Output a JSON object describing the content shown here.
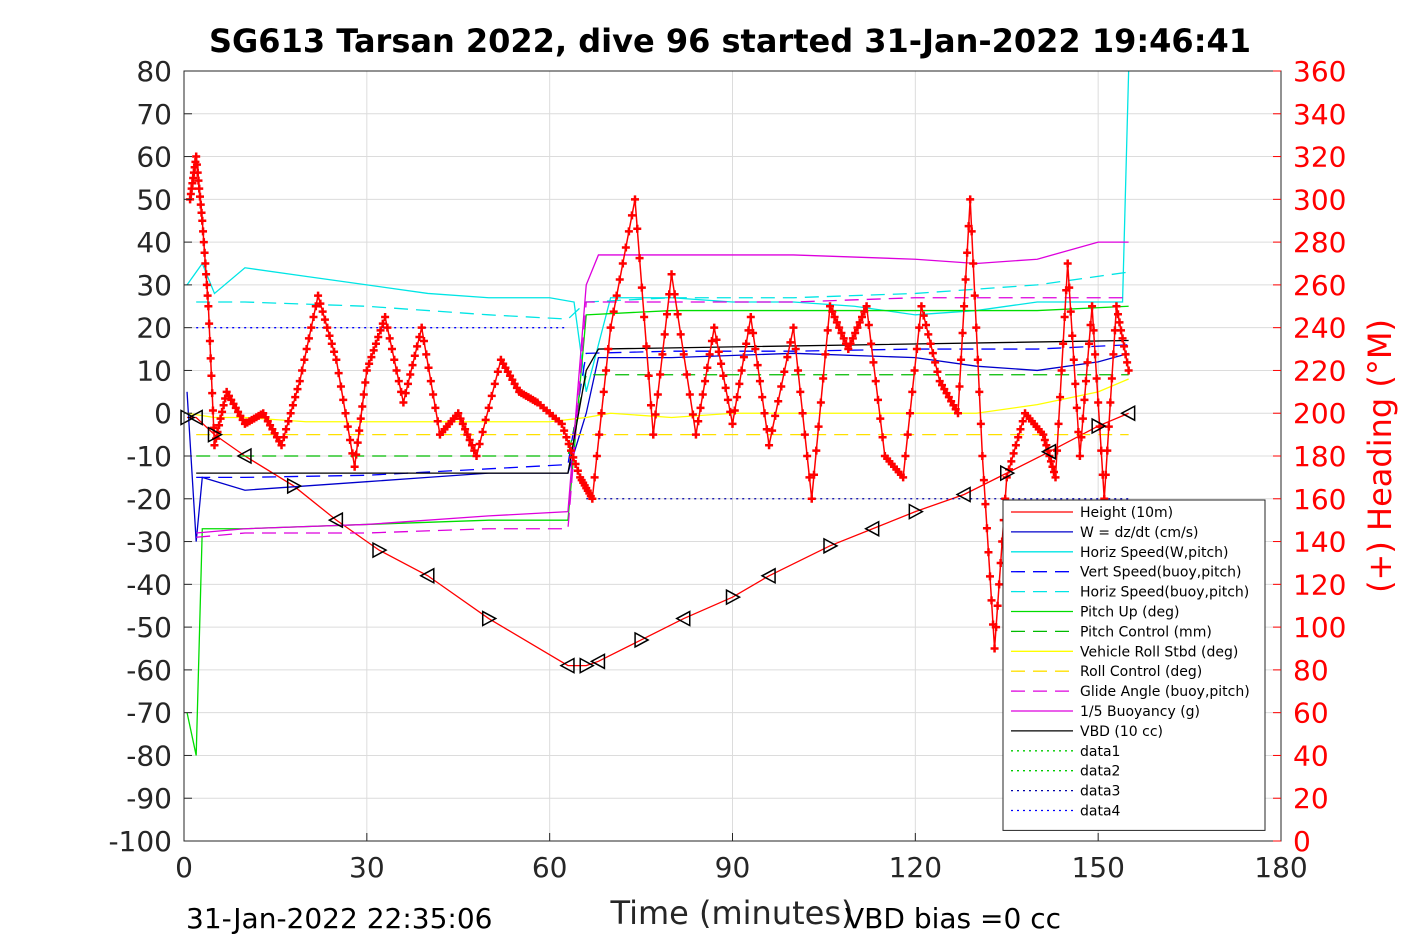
{
  "chart_data": {
    "type": "line",
    "title": "SG613 Tarsan 2022, dive 96 started 31-Jan-2022 19:46:41",
    "xlabel": "Time (minutes)",
    "ylabel_left": "",
    "ylabel_right": "(+) Heading (°M)",
    "xlim": [
      0,
      180
    ],
    "ylim_left": [
      -100,
      80
    ],
    "ylim_right": [
      0,
      360
    ],
    "x_ticks": [
      "0",
      "30",
      "60",
      "90",
      "120",
      "150",
      "180"
    ],
    "y_ticks_left": [
      "80",
      "70",
      "60",
      "50",
      "40",
      "30",
      "20",
      "10",
      "0",
      "-10",
      "-20",
      "-30",
      "-40",
      "-50",
      "-60",
      "-70",
      "-80",
      "-90",
      "-100"
    ],
    "y_ticks_right": [
      "360",
      "340",
      "320",
      "300",
      "280",
      "260",
      "240",
      "220",
      "200",
      "180",
      "160",
      "140",
      "120",
      "100",
      "80",
      "60",
      "40",
      "20",
      "0"
    ],
    "grid": true,
    "legend_position": "bottom-right",
    "footer_left": "31-Jan-2022 22:35:06",
    "footer_right": "VBD bias =0 cc",
    "legend": [
      {
        "name": "Height (10m)",
        "color": "#ff0000",
        "style": "solid"
      },
      {
        "name": "W = dz/dt (cm/s)",
        "color": "#0000cc",
        "style": "solid"
      },
      {
        "name": "Horiz Speed(W,pitch)",
        "color": "#00e5e5",
        "style": "solid"
      },
      {
        "name": "Vert Speed(buoy,pitch)",
        "color": "#0000ff",
        "style": "dashed"
      },
      {
        "name": "Horiz Speed(buoy,pitch)",
        "color": "#00e5e5",
        "style": "dashed"
      },
      {
        "name": "Pitch Up (deg)",
        "color": "#00dd00",
        "style": "solid"
      },
      {
        "name": "Pitch Control (mm)",
        "color": "#00bb00",
        "style": "dashed"
      },
      {
        "name": "Vehicle Roll Stbd (deg)",
        "color": "#ffff00",
        "style": "solid"
      },
      {
        "name": "Roll Control (deg)",
        "color": "#ffe000",
        "style": "dashed"
      },
      {
        "name": "Glide Angle (buoy,pitch)",
        "color": "#dd00dd",
        "style": "dashed"
      },
      {
        "name": "1/5 Buoyancy (g)",
        "color": "#dd00dd",
        "style": "solid"
      },
      {
        "name": "VBD (10 cc)",
        "color": "#000000",
        "style": "solid"
      },
      {
        "name": "data1",
        "color": "#00cc00",
        "style": "dotted"
      },
      {
        "name": "data2",
        "color": "#00cc00",
        "style": "dotted"
      },
      {
        "name": "data3",
        "color": "#0000aa",
        "style": "dotted"
      },
      {
        "name": "data4",
        "color": "#0000ff",
        "style": "dotted"
      }
    ],
    "series": [
      {
        "name": "Height (10m)",
        "axis": "left",
        "x": [
          0.5,
          2,
          5,
          10,
          18,
          25,
          32,
          40,
          50,
          63,
          66,
          68,
          75,
          82,
          90,
          96,
          106,
          113,
          120,
          128,
          135,
          142,
          150,
          155
        ],
        "y": [
          -1,
          -1,
          -5,
          -10,
          -17,
          -25,
          -32,
          -38,
          -48,
          -59,
          -59,
          -58,
          -53,
          -48,
          -43,
          -38,
          -31,
          -27,
          -23,
          -19,
          -14,
          -9,
          -3,
          0
        ]
      },
      {
        "name": "W = dz/dt (cm/s)",
        "axis": "left",
        "x": [
          0.5,
          2,
          3,
          10,
          20,
          30,
          40,
          50,
          63,
          66,
          68,
          80,
          100,
          120,
          130,
          140,
          150,
          155
        ],
        "y": [
          5,
          -30,
          -15,
          -18,
          -17,
          -16,
          -15,
          -14,
          -14,
          0,
          13,
          13,
          14,
          13,
          11,
          10,
          12,
          14
        ]
      },
      {
        "name": "Horiz Speed(W,pitch)",
        "axis": "left",
        "x": [
          0.5,
          3,
          5,
          10,
          20,
          30,
          40,
          50,
          60,
          64,
          66,
          70,
          80,
          90,
          100,
          110,
          120,
          130,
          140,
          150,
          154,
          155
        ],
        "y": [
          30,
          35,
          28,
          34,
          32,
          30,
          28,
          27,
          27,
          26,
          5,
          27,
          27,
          26,
          26,
          25,
          23,
          24,
          26,
          26,
          26,
          80
        ]
      },
      {
        "name": "Vert Speed(buoy,pitch)",
        "axis": "left",
        "x": [
          2,
          10,
          30,
          50,
          63,
          66,
          80,
          100,
          120,
          140,
          155
        ],
        "y": [
          -15,
          -15,
          -14.5,
          -13,
          -12,
          14,
          14.5,
          14.5,
          15,
          15,
          16
        ]
      },
      {
        "name": "Horiz Speed(buoy,pitch)",
        "axis": "left",
        "x": [
          2,
          10,
          30,
          50,
          63,
          66,
          80,
          100,
          120,
          140,
          155
        ],
        "y": [
          26,
          26,
          25,
          23,
          22,
          26,
          27,
          27,
          28,
          30,
          33
        ]
      },
      {
        "name": "Pitch Up (deg)",
        "axis": "left",
        "x": [
          0.5,
          2,
          3,
          10,
          30,
          50,
          63,
          66,
          80,
          100,
          120,
          140,
          155
        ],
        "y": [
          -70,
          -80,
          -27,
          -27,
          -26,
          -25,
          -25,
          23,
          24,
          24,
          24,
          24,
          25
        ]
      },
      {
        "name": "Pitch Control (mm)",
        "axis": "left",
        "x": [
          2,
          63,
          66,
          155
        ],
        "y": [
          -10,
          -10,
          9,
          9
        ]
      },
      {
        "name": "Vehicle Roll Stbd (deg)",
        "axis": "left",
        "x": [
          0.5,
          5,
          10,
          20,
          30,
          40,
          50,
          60,
          66,
          70,
          80,
          90,
          100,
          110,
          120,
          130,
          140,
          150,
          155
        ],
        "y": [
          0,
          -1,
          -1,
          -2,
          -2,
          -2,
          -2,
          -2,
          -1,
          0,
          -1,
          0,
          0,
          0,
          0,
          0,
          2,
          5,
          8
        ]
      },
      {
        "name": "Roll Control (deg)",
        "axis": "left",
        "x": [
          2,
          30,
          63,
          66,
          155
        ],
        "y": [
          -5,
          -5,
          -5,
          -5,
          -5
        ]
      },
      {
        "name": "Glide Angle (buoy,pitch)",
        "axis": "left",
        "x": [
          2,
          10,
          30,
          50,
          63,
          66,
          80,
          100,
          120,
          140,
          155
        ],
        "y": [
          -29,
          -28,
          -28,
          -27,
          -27,
          26,
          26,
          26,
          27,
          27,
          27
        ]
      },
      {
        "name": "1/5 Buoyancy (g)",
        "axis": "left",
        "x": [
          2,
          10,
          30,
          50,
          63,
          66,
          68,
          80,
          100,
          120,
          130,
          140,
          150,
          155
        ],
        "y": [
          -28,
          -27,
          -26,
          -24,
          -23,
          30,
          37,
          37,
          37,
          36,
          35,
          36,
          40,
          40
        ]
      },
      {
        "name": "VBD (10 cc)",
        "axis": "left",
        "x": [
          2,
          63,
          66,
          68,
          155
        ],
        "y": [
          -14,
          -14,
          10,
          15,
          17
        ]
      },
      {
        "name": "data4",
        "axis": "left",
        "x": [
          2,
          63
        ],
        "y": [
          20,
          20
        ]
      },
      {
        "name": "data3",
        "axis": "left",
        "x": [
          66,
          155
        ],
        "y": [
          -20,
          -20
        ]
      },
      {
        "name": "(+) Heading",
        "axis": "right",
        "x": [
          1,
          2,
          3,
          4,
          5,
          7,
          10,
          13,
          16,
          19,
          22,
          25,
          28,
          30,
          33,
          36,
          39,
          42,
          45,
          48,
          52,
          55,
          58,
          62,
          65,
          67,
          70,
          74,
          77,
          80,
          84,
          87,
          90,
          93,
          96,
          100,
          103,
          106,
          109,
          112,
          115,
          118,
          121,
          124,
          127,
          129,
          131,
          133,
          135,
          138,
          141,
          143,
          145,
          147,
          149,
          151,
          153,
          155
        ],
        "y": [
          300,
          320,
          290,
          250,
          185,
          210,
          195,
          200,
          185,
          215,
          255,
          225,
          175,
          220,
          245,
          205,
          240,
          190,
          200,
          180,
          225,
          210,
          205,
          195,
          170,
          160,
          240,
          300,
          190,
          265,
          190,
          240,
          195,
          245,
          185,
          240,
          160,
          250,
          230,
          250,
          180,
          170,
          250,
          215,
          200,
          300,
          180,
          90,
          170,
          200,
          190,
          170,
          270,
          180,
          250,
          160,
          250,
          220
        ]
      }
    ]
  }
}
